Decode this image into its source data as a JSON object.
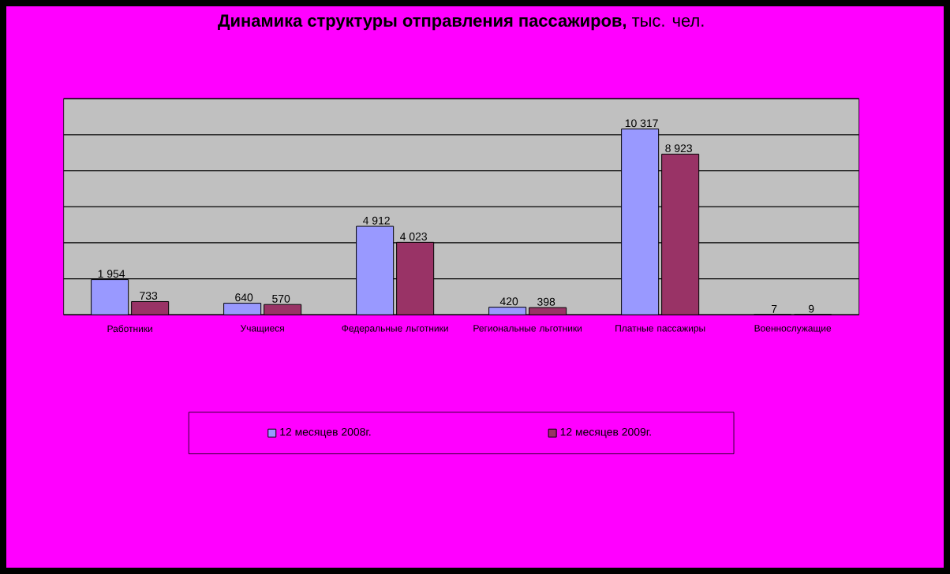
{
  "chart_data": {
    "type": "bar",
    "title": "**Динамика структуры отправления пассажиров,** тыс. чел.",
    "categories": [
      "Работники",
      "Учащиеся",
      "Федеральные льготники",
      "Региональные льготники",
      "Платные пассажиры",
      "Военнослужащие"
    ],
    "series": [
      {
        "name": "12 месяцев 2008г.",
        "color": "#9999ff",
        "values": [
          1954,
          640,
          4912,
          420,
          10317,
          7
        ],
        "value_labels": [
          "1 954",
          "640",
          "4 912",
          "420",
          "10 317",
          "7"
        ]
      },
      {
        "name": "12 месяцев 2009г.",
        "color": "#993366",
        "values": [
          733,
          570,
          4023,
          398,
          8923,
          9
        ],
        "value_labels": [
          "733",
          "570",
          "4 023",
          "398",
          "8 923",
          "9"
        ]
      }
    ],
    "ylim": [
      0,
      12000
    ],
    "yticks": [
      {
        "value": 0,
        "label": null
      },
      {
        "value": 2000,
        "label": null
      },
      {
        "value": 4000,
        "label": null
      },
      {
        "value": 6000,
        "label": null
      },
      {
        "value": 8000,
        "label": null
      },
      {
        "value": 10000,
        "label": null
      },
      {
        "value": 12000,
        "label": null
      }
    ],
    "grid": "y",
    "legend": "bottom",
    "tick_labels": "x"
  }
}
